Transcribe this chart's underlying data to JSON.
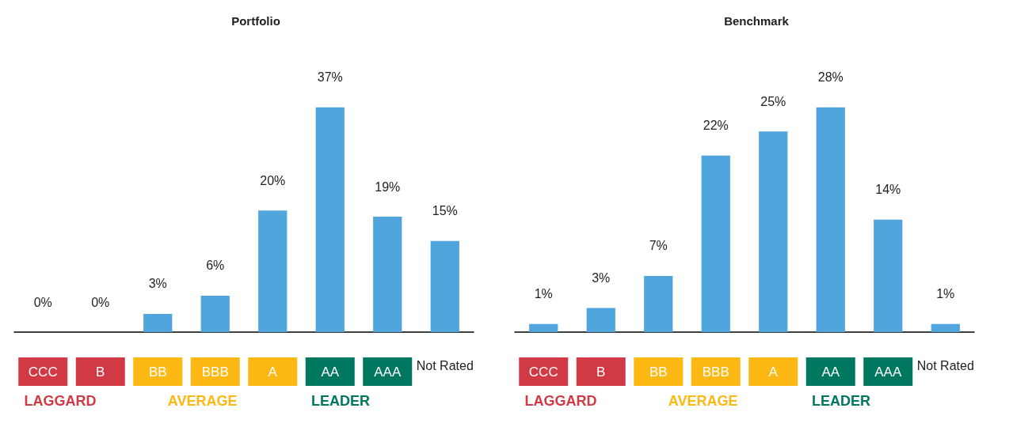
{
  "chart_data": [
    {
      "type": "bar",
      "title": "Portfolio",
      "categories": [
        "CCC",
        "B",
        "BB",
        "BBB",
        "A",
        "AA",
        "AAA",
        "Not Rated"
      ],
      "values": [
        0,
        0,
        3,
        6,
        20,
        37,
        19,
        15
      ],
      "value_labels": [
        "0%",
        "0%",
        "3%",
        "6%",
        "20%",
        "37%",
        "19%",
        "15%"
      ],
      "color": "#4fa5dc",
      "tick_labels": "x",
      "annotations": [
        "LAGGARD",
        "AVERAGE",
        "LEADER"
      ]
    },
    {
      "type": "bar",
      "title": "Benchmark",
      "categories": [
        "CCC",
        "B",
        "BB",
        "BBB",
        "A",
        "AA",
        "AAA",
        "Not Rated"
      ],
      "values": [
        1,
        3,
        7,
        22,
        25,
        28,
        14,
        1
      ],
      "value_labels": [
        "1%",
        "3%",
        "7%",
        "22%",
        "25%",
        "28%",
        "14%",
        "1%"
      ],
      "color": "#4fa5dc",
      "tick_labels": "x",
      "annotations": [
        "LAGGARD",
        "AVERAGE",
        "LEADER"
      ]
    }
  ]
}
